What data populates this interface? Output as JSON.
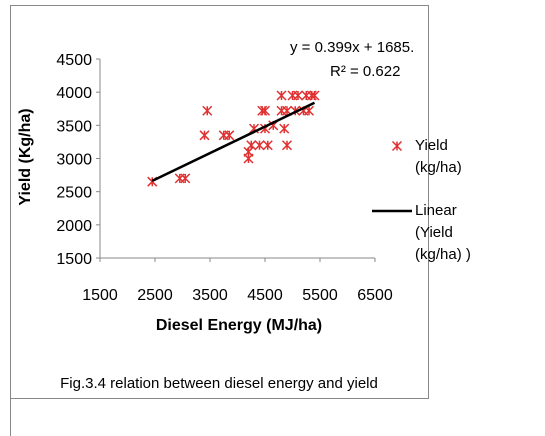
{
  "chart_data": {
    "type": "scatter",
    "xlabel": "Diesel Energy (MJ/ha)",
    "ylabel": "Yield (Kg/ha)",
    "caption": "Fig.3.4 relation between diesel energy  and yield",
    "annotations": [
      "y = 0.399x + 1685.",
      "R² = 0.622"
    ],
    "xlim": [
      1500,
      6500
    ],
    "xticks": [
      1500,
      2500,
      3500,
      4500,
      5500,
      6500
    ],
    "ylim": [
      1500,
      4500
    ],
    "yticks": [
      1500,
      2000,
      2500,
      3000,
      3500,
      4000,
      4500
    ],
    "series": [
      {
        "name": "Yield (kg/ha)",
        "color": "#e03030",
        "marker": "asterisk",
        "x": [
          2450,
          2950,
          3050,
          3400,
          3450,
          3750,
          3850,
          4200,
          4200,
          4250,
          4300,
          4400,
          4450,
          4500,
          4500,
          4550,
          4650,
          4800,
          4850,
          4800,
          4900,
          4900,
          5000,
          5050,
          5100,
          5200,
          5250,
          5300,
          5350,
          5400
        ],
        "values": [
          2650,
          2700,
          2700,
          3350,
          3720,
          3350,
          3350,
          3000,
          3100,
          3200,
          3450,
          3200,
          3720,
          3720,
          3450,
          3200,
          3500,
          3950,
          3450,
          3720,
          3200,
          3720,
          3950,
          3720,
          3950,
          3720,
          3950,
          3720,
          3950,
          3950
        ]
      },
      {
        "name": "Linear (Yield (kg/ha) )",
        "color": "#000000",
        "marker": "line",
        "x": [
          2450,
          5400
        ],
        "values": [
          2662,
          3840
        ]
      }
    ]
  }
}
